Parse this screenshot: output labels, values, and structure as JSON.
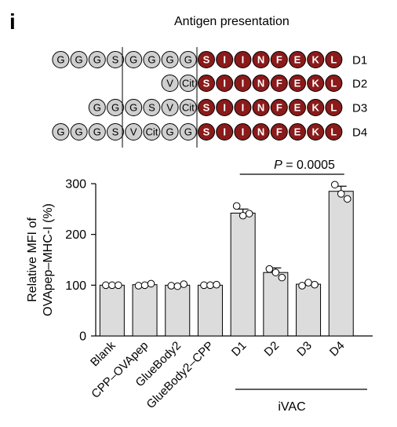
{
  "panel_label": "i",
  "header_title": "Antigen presentation",
  "colors": {
    "linker_bead_fill": "#cfcfcf",
    "epitope_bead_fill": "#8b1a1a",
    "bar_fill": "#dcdcdc",
    "bar_stroke": "#000000"
  },
  "constructs": [
    {
      "name": "D1",
      "linker": [
        "G",
        "G",
        "G",
        "S",
        "G",
        "G",
        "G",
        "G"
      ],
      "epitope": [
        "S",
        "I",
        "I",
        "N",
        "F",
        "E",
        "K",
        "L"
      ]
    },
    {
      "name": "D2",
      "linker": [
        "V",
        "Cit"
      ],
      "epitope": [
        "S",
        "I",
        "I",
        "N",
        "F",
        "E",
        "K",
        "L"
      ]
    },
    {
      "name": "D3",
      "linker": [
        "G",
        "G",
        "G",
        "S",
        "V",
        "Cit"
      ],
      "epitope": [
        "S",
        "I",
        "I",
        "N",
        "F",
        "E",
        "K",
        "L"
      ]
    },
    {
      "name": "D4",
      "linker": [
        "G",
        "G",
        "G",
        "S",
        "V",
        "Cit",
        "G",
        "G"
      ],
      "epitope": [
        "S",
        "I",
        "I",
        "N",
        "F",
        "E",
        "K",
        "L"
      ]
    }
  ],
  "chart_data": {
    "type": "bar",
    "categories": [
      "Blank",
      "CPP–OVApep",
      "GlueBody2",
      "GlueBody2–CPP",
      "D1",
      "D2",
      "D3",
      "D4"
    ],
    "values": [
      100,
      101,
      100,
      100,
      242,
      125,
      102,
      285
    ],
    "errors": [
      0,
      1,
      1,
      0,
      8,
      9,
      1,
      10
    ],
    "points": [
      [
        100,
        100,
        100
      ],
      [
        99,
        100,
        103
      ],
      [
        99,
        98,
        102
      ],
      [
        100,
        100,
        101
      ],
      [
        256,
        237,
        241
      ],
      [
        132,
        125,
        115
      ],
      [
        99,
        105,
        101
      ],
      [
        298,
        280,
        270
      ]
    ],
    "ylabel_line1": "Relative MFI of",
    "ylabel_line2": "OVApep–MHC-I (%)",
    "ylim": [
      0,
      300
    ],
    "yticks": [
      "0",
      "100",
      "200",
      "300"
    ],
    "group_label": "iVAC",
    "significance": {
      "text_italic": "P",
      "text_rest": " = 0.0005"
    }
  }
}
